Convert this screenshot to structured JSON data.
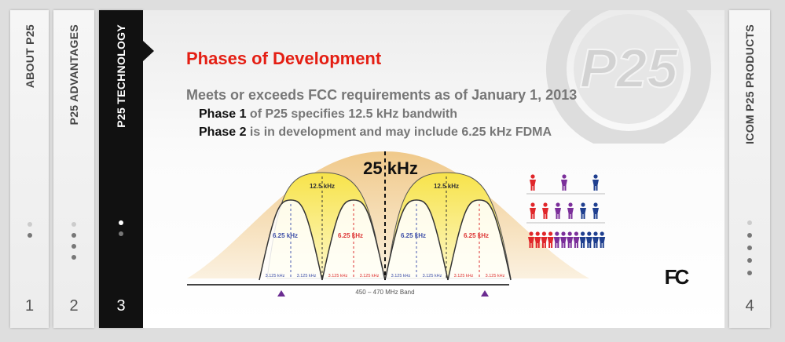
{
  "tabs": [
    {
      "label": "ABOUT P25",
      "number": "1"
    },
    {
      "label": "P25 ADVANTAGES",
      "number": "2"
    },
    {
      "label": "P25 TECHNOLOGY",
      "number": "3"
    },
    {
      "label": "ICOM P25 PRODUCTS",
      "number": "4"
    }
  ],
  "slide": {
    "title": "Phases of Development",
    "intro": "Meets or exceeds FCC requirements as of January 1, 2013",
    "lines": [
      {
        "bold": "Phase 1",
        "text": " of P25 specifies 12.5 kHz bandwith"
      },
      {
        "bold": "Phase 2",
        "text": " is in development and may include 6.25 kHz FDMA"
      }
    ],
    "watermark": "P25",
    "diagram": {
      "total": "25 kHz",
      "halves": [
        "12.5 kHz",
        "12.5 kHz"
      ],
      "quarters": [
        "6.25 kHz",
        "6.25 kHz",
        "6.25 kHz",
        "6.25 kHz"
      ],
      "eighths": [
        "3.125 kHz",
        "3.125 kHz",
        "3.125 kHz",
        "3.125 kHz",
        "3.125 kHz",
        "3.125 kHz",
        "3.125 kHz",
        "3.125 kHz"
      ],
      "band": "450 – 470 MHz Band"
    },
    "logo": "FC"
  }
}
